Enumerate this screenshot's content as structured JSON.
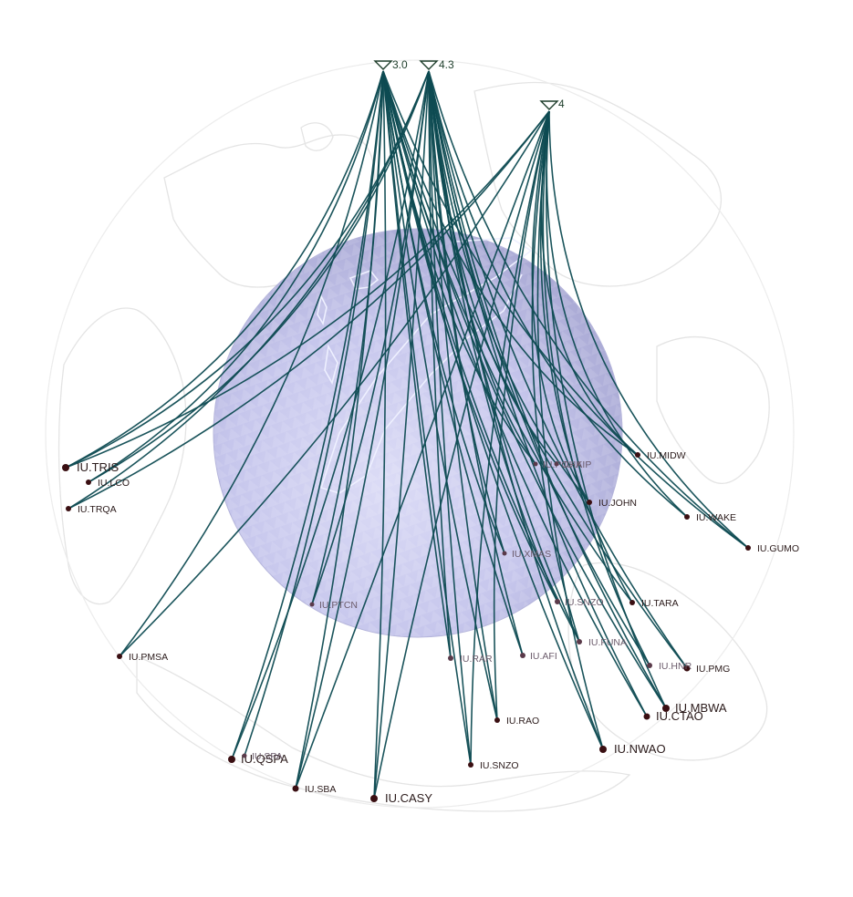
{
  "colors": {
    "ray": "#0e4b52",
    "station": "#3a0f12",
    "core_fill": "#c9c9ee",
    "core_edge": "#a8a8d2",
    "coastline": "#e4e4e4",
    "event": "#1d3d2a"
  },
  "events": [
    {
      "label": "3.0"
    },
    {
      "label": "4.3"
    },
    {
      "label": "4"
    }
  ],
  "stations": [
    {
      "label": "IU.TRIS"
    },
    {
      "label": "IU.LCO"
    },
    {
      "label": "IU.TRQA"
    },
    {
      "label": "IU.PMSA"
    },
    {
      "label": "IU.PTCN"
    },
    {
      "label": "IU.QSPA"
    },
    {
      "label": "IU.SBA"
    },
    {
      "label": "IU.CASY"
    },
    {
      "label": "IU.SNZO"
    },
    {
      "label": "IU.RAO"
    },
    {
      "label": "IU.RAR"
    },
    {
      "label": "IU.AFI"
    },
    {
      "label": "IU.FUNA"
    },
    {
      "label": "IU.NWAO"
    },
    {
      "label": "IU.CTAO"
    },
    {
      "label": "IU.MBWA"
    },
    {
      "label": "IU.PMG"
    },
    {
      "label": "IU.HNR"
    },
    {
      "label": "IU.TARA"
    },
    {
      "label": "IU.SNZO"
    },
    {
      "label": "IU.XMAS"
    },
    {
      "label": "IU.GUMO"
    },
    {
      "label": "IU.WAKE"
    },
    {
      "label": "IU.JOHN"
    },
    {
      "label": "IU.MIDW"
    },
    {
      "label": "IU.POHA"
    },
    {
      "label": "IU.KIP"
    },
    {
      "label": "IU.SPA"
    }
  ]
}
